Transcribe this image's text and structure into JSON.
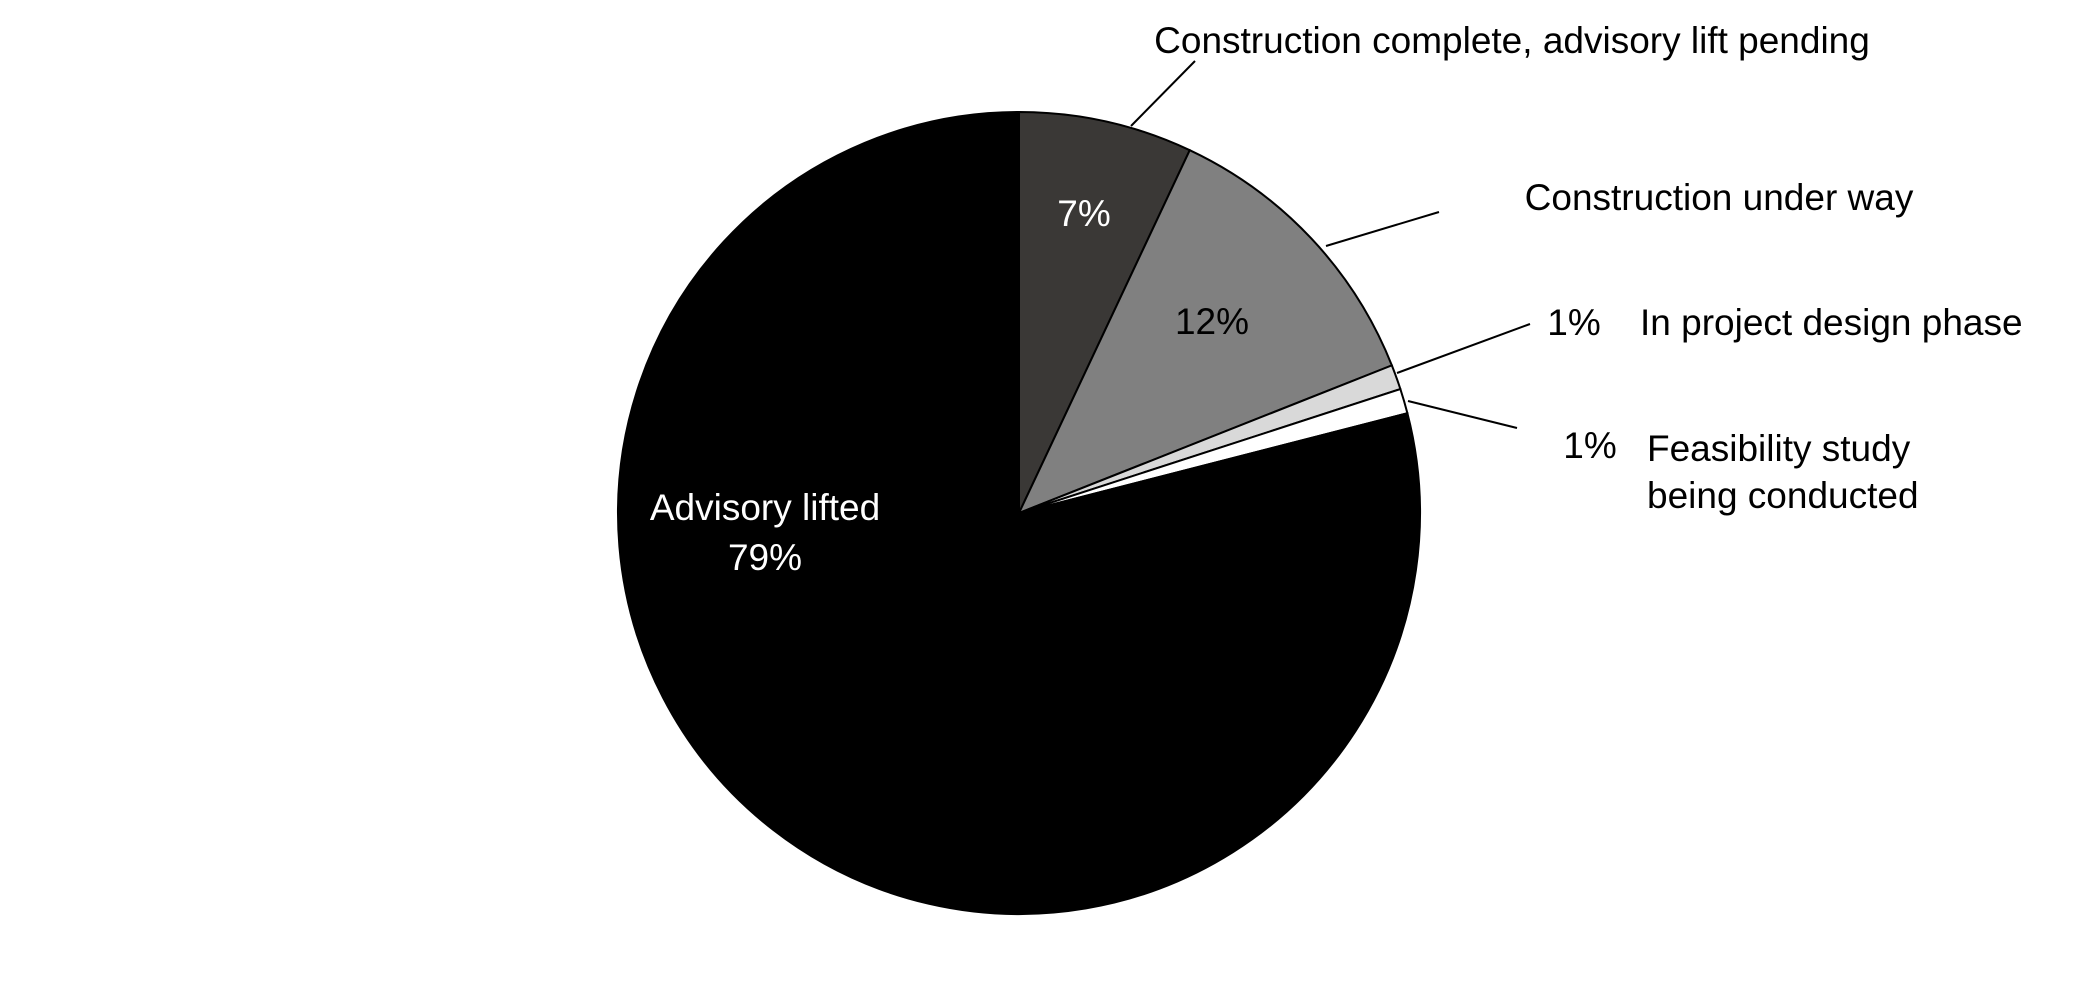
{
  "chart_data": {
    "type": "pie",
    "categories": [
      "Construction complete, advisory lift pending",
      "Construction under way",
      "In project design phase",
      "Feasibility study being conducted",
      "Advisory lifted"
    ],
    "values": [
      7,
      12,
      1,
      1,
      79
    ],
    "value_labels": [
      "7%",
      "12%",
      "1%",
      "1%",
      "79%"
    ],
    "colors": [
      "#3a3836",
      "#808080",
      "#d9d9d9",
      "#ffffff",
      "#000000"
    ]
  }
}
